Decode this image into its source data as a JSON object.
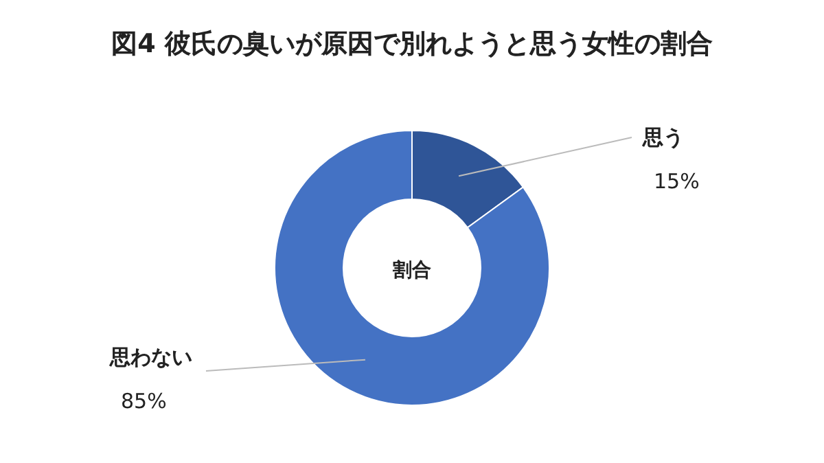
{
  "chart_data": {
    "type": "donut",
    "title": "図4 彼氏の臭いが原因で別れようと思う女性の割合",
    "categories": [
      "思う",
      "思わない"
    ],
    "values": [
      15,
      85
    ],
    "colors": [
      "#2f5597",
      "#4472c4"
    ],
    "value_labels": [
      "15%",
      "85%"
    ],
    "annotations": [
      "割合"
    ]
  }
}
